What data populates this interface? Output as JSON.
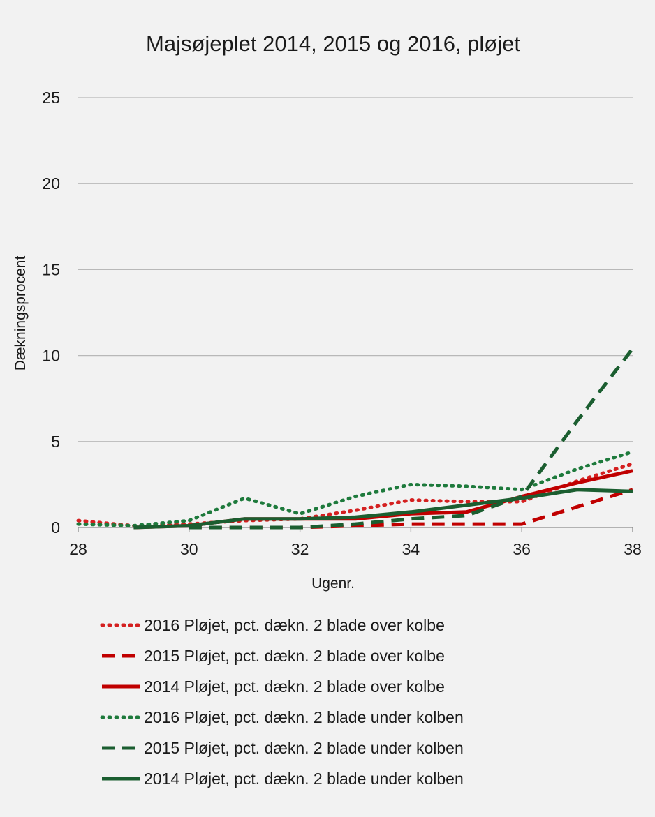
{
  "chart_data": {
    "type": "line",
    "title": "Majsøjeplet 2014, 2015 og 2016, pløjet",
    "xlabel": "Ugenr.",
    "ylabel": "Dækningsprocent",
    "xlim": [
      28,
      38
    ],
    "ylim": [
      0,
      25
    ],
    "x_ticks": [
      28,
      30,
      32,
      34,
      36,
      38
    ],
    "y_ticks": [
      0,
      5,
      10,
      15,
      20,
      25
    ],
    "grid": "horizontal",
    "legend_position": "bottom",
    "x": [
      28,
      29,
      30,
      31,
      32,
      33,
      34,
      35,
      36,
      37,
      38
    ],
    "series": [
      {
        "name": "2016 Pløjet, pct. dækn. 2 blade over kolbe",
        "color": "#d42020",
        "style": "dotted",
        "values": [
          0.4,
          0.1,
          0.2,
          0.4,
          0.5,
          1.0,
          1.6,
          1.5,
          1.5,
          2.7,
          3.7
        ]
      },
      {
        "name": "2015 Pløjet, pct. dækn. 2 blade over kolbe",
        "color": "#c00000",
        "style": "dashed",
        "values": [
          null,
          null,
          0.0,
          0.0,
          0.0,
          0.1,
          0.2,
          0.2,
          0.2,
          1.2,
          2.2
        ]
      },
      {
        "name": "2014 Pløjet, pct. dækn. 2 blade over kolbe",
        "color": "#c00000",
        "style": "solid",
        "values": [
          null,
          0.0,
          0.1,
          0.5,
          0.5,
          0.5,
          0.8,
          0.9,
          1.8,
          2.6,
          3.3
        ]
      },
      {
        "name": "2016 Pløjet, pct. dækn. 2 blade under kolben",
        "color": "#1e7a3c",
        "style": "dotted",
        "values": [
          0.2,
          0.1,
          0.4,
          1.7,
          0.8,
          1.8,
          2.5,
          2.4,
          2.2,
          3.4,
          4.4
        ]
      },
      {
        "name": "2015 Pløjet, pct. dækn. 2 blade under kolben",
        "color": "#1b5e30",
        "style": "dashed",
        "values": [
          null,
          null,
          0.0,
          0.0,
          0.0,
          0.2,
          0.5,
          0.7,
          1.8,
          6.2,
          10.4
        ]
      },
      {
        "name": "2014 Pløjet, pct. dækn. 2 blade under kolben",
        "color": "#1b5e30",
        "style": "solid",
        "values": [
          null,
          0.0,
          0.1,
          0.5,
          0.5,
          0.6,
          0.9,
          1.3,
          1.7,
          2.2,
          2.1
        ]
      }
    ]
  }
}
